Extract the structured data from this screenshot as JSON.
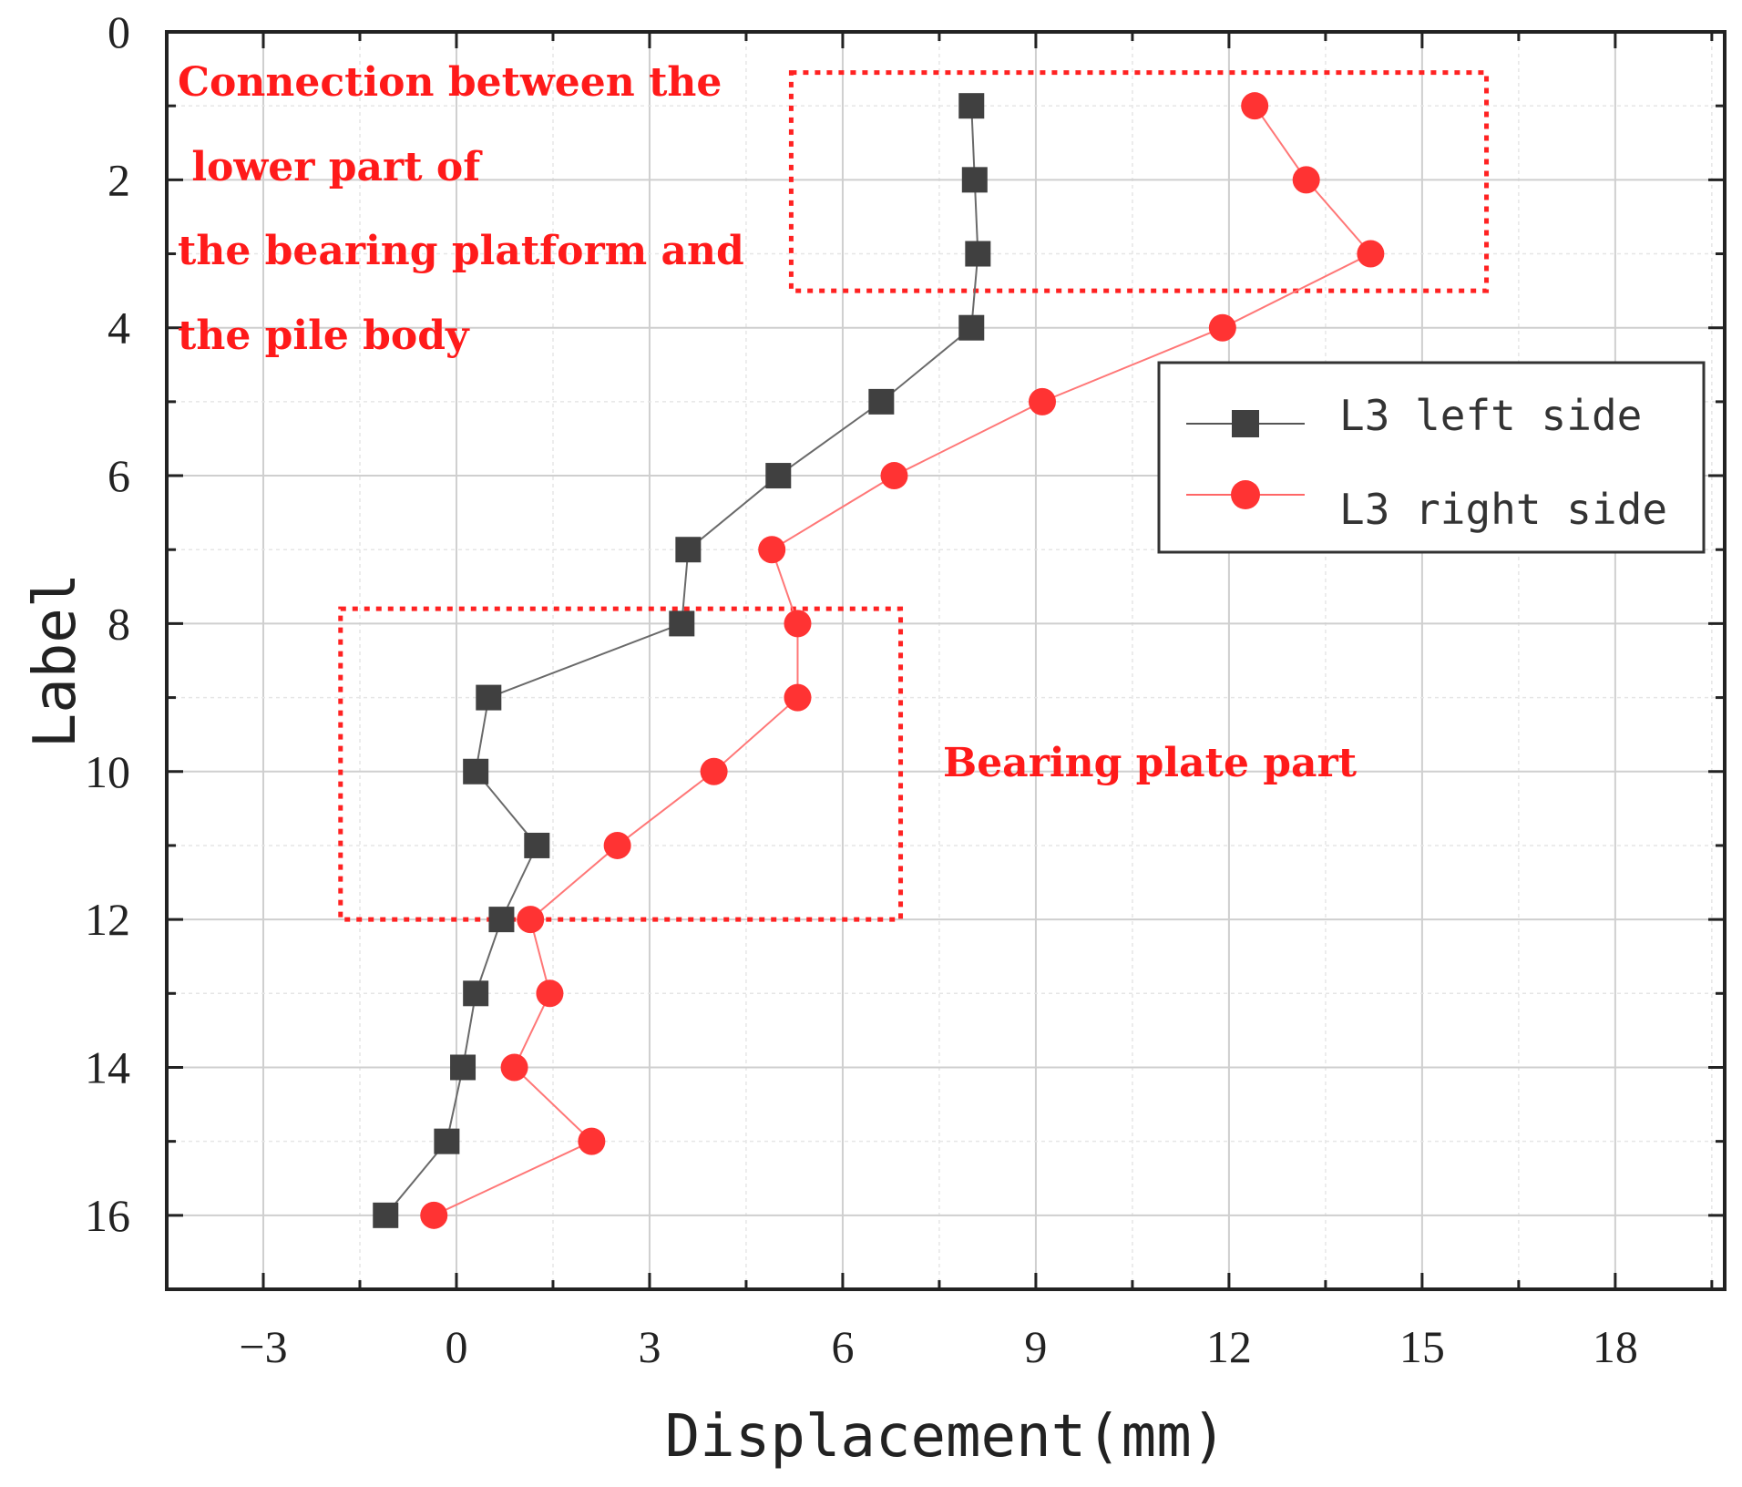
{
  "chart_data": {
    "type": "line",
    "title": "",
    "xlabel": "Displacement(mm)",
    "ylabel": "Label",
    "xlim": [
      -4.5,
      19.7
    ],
    "ylim": [
      0,
      17
    ],
    "y_inverted": true,
    "x_ticks": [
      "-3",
      "0",
      "3",
      "6",
      "9",
      "12",
      "15",
      "18"
    ],
    "y_ticks": [
      "0",
      "2",
      "4",
      "6",
      "8",
      "10",
      "12",
      "14",
      "16"
    ],
    "grid": true,
    "legend_position": "upper-right",
    "series": [
      {
        "name": "L3 left side",
        "color": "#404040",
        "marker": "square",
        "labels": [
          1,
          2,
          3,
          4,
          5,
          6,
          7,
          8,
          9,
          10,
          11,
          12,
          13,
          14,
          15,
          16
        ],
        "displacement": [
          8.0,
          8.05,
          8.1,
          8.0,
          6.6,
          5.0,
          3.6,
          3.5,
          0.5,
          0.3,
          1.25,
          0.7,
          0.3,
          0.1,
          -0.15,
          -1.1
        ]
      },
      {
        "name": "L3 right side",
        "color": "#ff3333",
        "marker": "circle",
        "labels": [
          1,
          2,
          3,
          4,
          5,
          6,
          7,
          8,
          9,
          10,
          11,
          12,
          13,
          14,
          15,
          16
        ],
        "displacement": [
          12.4,
          13.2,
          14.2,
          11.9,
          9.1,
          6.8,
          4.9,
          5.3,
          5.3,
          4.0,
          2.5,
          1.15,
          1.45,
          0.9,
          2.1,
          -0.35
        ]
      }
    ],
    "annotations": [
      {
        "name": "connection-annotation",
        "lines": [
          "Connection between the",
          " lower part of",
          "the bearing platform and",
          "the pile body"
        ],
        "box_x_range": [
          5.2,
          16.0
        ],
        "box_label_range": [
          0.55,
          3.5
        ]
      },
      {
        "name": "bearing-plate-annotation",
        "lines": [
          "Bearing plate part"
        ],
        "box_x_range": [
          -1.8,
          6.9
        ],
        "box_label_range": [
          7.8,
          12.0
        ]
      }
    ]
  }
}
